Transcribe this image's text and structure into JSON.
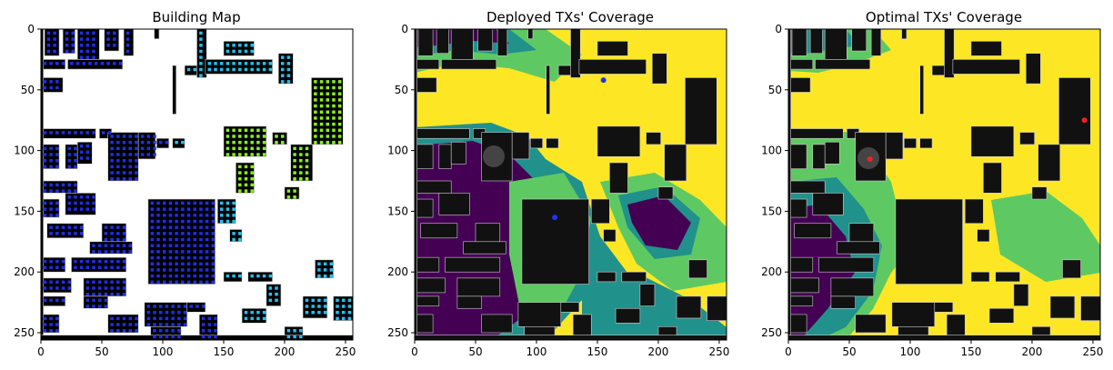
{
  "chart_data": [
    {
      "type": "heatmap",
      "title": "Building Map",
      "xlim": [
        0,
        256
      ],
      "ylim": [
        256,
        0
      ],
      "x_ticks": [
        "0",
        "50",
        "100",
        "150",
        "200",
        "250"
      ],
      "y_ticks": [
        "0",
        "50",
        "100",
        "150",
        "200",
        "250"
      ],
      "colors": {
        "background": "#ffffff",
        "building": "#000000",
        "blue_tx": "#1f2ee6",
        "cyan_tx": "#22c0f0",
        "green_tx": "#88f01e"
      }
    },
    {
      "type": "heatmap",
      "title": "Deployed TXs' Coverage",
      "xlim": [
        0,
        256
      ],
      "ylim": [
        256,
        0
      ],
      "x_ticks": [
        "0",
        "50",
        "100",
        "150",
        "200",
        "250"
      ],
      "y_ticks": [
        "0",
        "50",
        "100",
        "150",
        "200",
        "250"
      ],
      "tx_points": [
        [
          155,
          42
        ],
        [
          115,
          155
        ]
      ],
      "colors": {
        "high": "#fde725",
        "mid": "#5ec962",
        "low": "#21918c",
        "none": "#440154",
        "building": "#111111",
        "tx": "#2233ee"
      }
    },
    {
      "type": "heatmap",
      "title": "Optimal TXs' Coverage",
      "xlim": [
        0,
        256
      ],
      "ylim": [
        256,
        0
      ],
      "x_ticks": [
        "0",
        "50",
        "100",
        "150",
        "200",
        "250"
      ],
      "y_ticks": [
        "0",
        "50",
        "100",
        "150",
        "200",
        "250"
      ],
      "tx_points": [
        [
          243,
          75
        ],
        [
          67,
          107
        ]
      ],
      "colors": {
        "high": "#fde725",
        "mid": "#5ec962",
        "low": "#21918c",
        "none": "#440154",
        "building": "#111111",
        "tx": "#ee2222"
      }
    }
  ]
}
